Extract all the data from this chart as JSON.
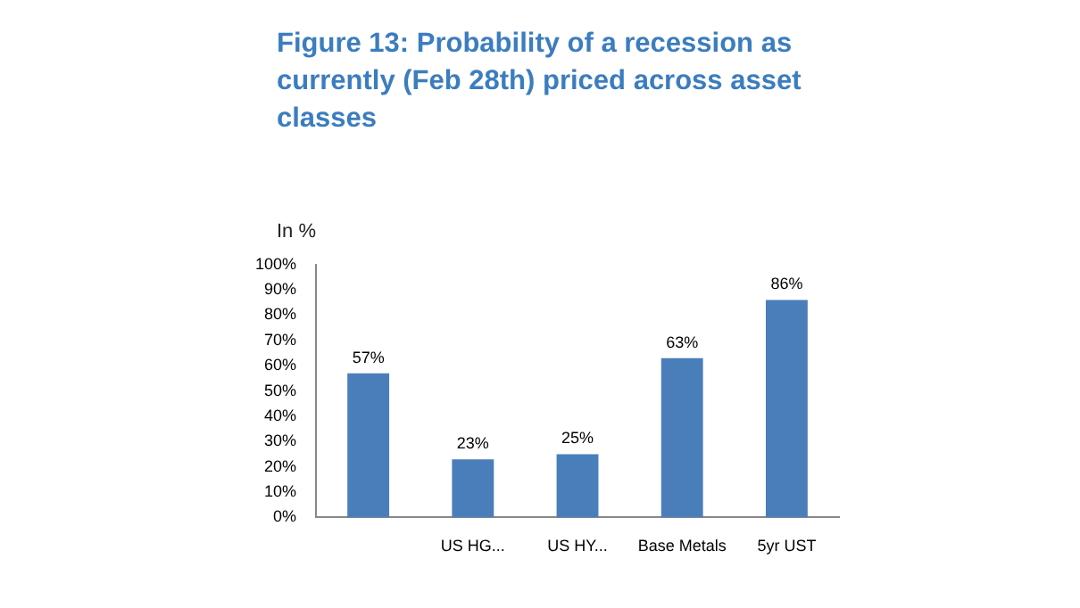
{
  "chart_data": {
    "type": "bar",
    "title": "Figure 13: Probability of a recession as currently (Feb 28th) priced across asset classes",
    "subtitle": "In %",
    "categories": [
      null,
      "US HG...",
      "US HY...",
      "Base Metals",
      "5yr UST"
    ],
    "values": [
      57,
      23,
      25,
      63,
      86
    ],
    "color": "#4a7ebb",
    "value_labels": [
      "57%",
      "23%",
      "25%",
      "63%",
      "86%"
    ],
    "ylim": [
      0,
      100
    ],
    "yticks": [
      {
        "value": 0,
        "label": "0%"
      },
      {
        "value": 10,
        "label": "10%"
      },
      {
        "value": 20,
        "label": "20%"
      },
      {
        "value": 30,
        "label": "30%"
      },
      {
        "value": 40,
        "label": "40%"
      },
      {
        "value": 50,
        "label": "50%"
      },
      {
        "value": 60,
        "label": "60%"
      },
      {
        "value": 70,
        "label": "70%"
      },
      {
        "value": 80,
        "label": "80%"
      },
      {
        "value": 90,
        "label": "90%"
      },
      {
        "value": 100,
        "label": "100%"
      }
    ],
    "grid": false,
    "legend": false
  }
}
